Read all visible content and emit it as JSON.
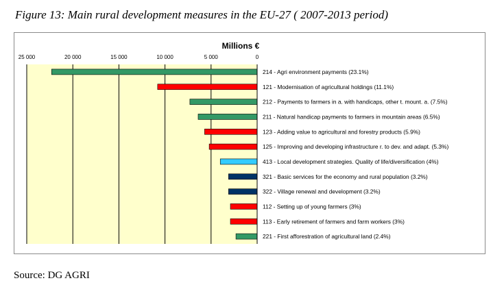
{
  "figure_caption": "Figure 13: Main rural development measures in the EU-27 ( 2007-2013 period)",
  "source_text": "Source: DG AGRI",
  "colors": {
    "plot_bg": "#FFFFCC",
    "green": "#339966",
    "red": "#FF0000",
    "cyan": "#33CCFF",
    "navy": "#003366",
    "grid": "#000000"
  },
  "chart_data": {
    "type": "bar",
    "orientation": "horizontal",
    "x_direction": "reversed",
    "xlabel": "Millions €",
    "xlim": [
      0,
      25000
    ],
    "xticks": [
      0,
      5000,
      10000,
      15000,
      20000,
      25000
    ],
    "xtick_labels": [
      "0",
      "5 000",
      "10 000",
      "15 000",
      "20 000",
      "25 000"
    ],
    "grid": true,
    "categories": [
      "214 - Agri environment payments (23.1%)",
      "121 - Modernisation of agricultural holdings (11.1%)",
      "212 - Payments to farmers in a. with handicaps, other t. mount. a. (7.5%)",
      "211 - Natural handicap payments to farmers in mountain areas (6.5%)",
      "123 - Adding value to agricultural and forestry products (5.9%)",
      "125 - Improving and developing infrastructure r. to dev. and adapt. (5.3%)",
      "413 - Local development strategies. Quality of life/diversification (4%)",
      "321 - Basic services for the economy and rural population (3.2%)",
      "322 - Village renewal and development (3.2%)",
      "112 - Setting up of young farmers (3%)",
      "113 - Early retirement of farmers and farm workers (3%)",
      "221 - First afforestration of agricultural land (2.4%)"
    ],
    "values": [
      22300,
      10800,
      7300,
      6400,
      5700,
      5200,
      4000,
      3100,
      3100,
      2900,
      2900,
      2300
    ],
    "bar_colors": [
      "#339966",
      "#FF0000",
      "#339966",
      "#339966",
      "#FF0000",
      "#FF0000",
      "#33CCFF",
      "#003366",
      "#003366",
      "#FF0000",
      "#FF0000",
      "#339966"
    ]
  }
}
